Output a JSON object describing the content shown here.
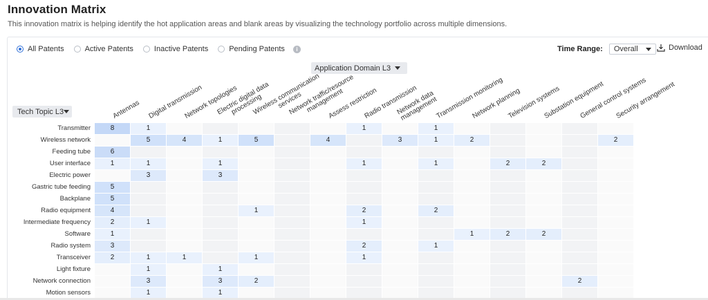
{
  "header": {
    "title": "Innovation Matrix",
    "subtitle": "This innovation matrix is helping identify the hot application areas and blank areas by visualizing the technology portfolio across multiple dimensions."
  },
  "filters": {
    "options": [
      "All Patents",
      "Active Patents",
      "Inactive Patents",
      "Pending Patents"
    ],
    "selected": "All Patents",
    "info_icon": "info-icon"
  },
  "time_range": {
    "label": "Time Range:",
    "value": "Overall"
  },
  "download": {
    "label": "Download",
    "icon": "download-icon"
  },
  "column_selector": {
    "label": "Application Domain L3"
  },
  "row_selector": {
    "label": "Tech Topic L3"
  },
  "columns": [
    "Antennas",
    "Digital transmission",
    "Network topologies",
    "Electric digital data processing",
    "Wireless communication services",
    "Network traffic/resource management",
    "Assess restriction",
    "Radio transmission",
    "Network data management",
    "Transmission monitoring",
    "Network planning",
    "Television systems",
    "Substation equipment",
    "General control systems",
    "Security arrangement"
  ],
  "rows": [
    {
      "label": "Transmitter",
      "values": [
        "8",
        "1",
        "",
        "",
        "",
        "",
        "",
        "1",
        "",
        "1",
        "",
        "",
        "",
        "",
        ""
      ]
    },
    {
      "label": "Wireless network",
      "values": [
        "",
        "5",
        "4",
        "1",
        "5",
        "",
        "4",
        "",
        "3",
        "1",
        "2",
        "",
        "",
        "",
        "2"
      ]
    },
    {
      "label": "Feeding tube",
      "values": [
        "6",
        "",
        "",
        "",
        "",
        "",
        "",
        "",
        "",
        "",
        "",
        "",
        "",
        "",
        ""
      ]
    },
    {
      "label": "User interface",
      "values": [
        "1",
        "1",
        "",
        "1",
        "",
        "",
        "",
        "1",
        "",
        "1",
        "",
        "2",
        "2",
        "",
        ""
      ]
    },
    {
      "label": "Electric power",
      "values": [
        "",
        "3",
        "",
        "3",
        "",
        "",
        "",
        "",
        "",
        "",
        "",
        "",
        "",
        "",
        ""
      ]
    },
    {
      "label": "Gastric tube feeding",
      "values": [
        "5",
        "",
        "",
        "",
        "",
        "",
        "",
        "",
        "",
        "",
        "",
        "",
        "",
        "",
        ""
      ]
    },
    {
      "label": "Backplane",
      "values": [
        "5",
        "",
        "",
        "",
        "",
        "",
        "",
        "",
        "",
        "",
        "",
        "",
        "",
        "",
        ""
      ]
    },
    {
      "label": "Radio equipment",
      "values": [
        "4",
        "",
        "",
        "",
        "1",
        "",
        "",
        "2",
        "",
        "2",
        "",
        "",
        "",
        "",
        ""
      ]
    },
    {
      "label": "Intermediate frequency",
      "values": [
        "2",
        "1",
        "",
        "",
        "",
        "",
        "",
        "1",
        "",
        "",
        "",
        "",
        "",
        "",
        ""
      ]
    },
    {
      "label": "Software",
      "values": [
        "1",
        "",
        "",
        "",
        "",
        "",
        "",
        "",
        "",
        "",
        "1",
        "2",
        "2",
        "",
        ""
      ]
    },
    {
      "label": "Radio system",
      "values": [
        "3",
        "",
        "",
        "",
        "",
        "",
        "",
        "2",
        "",
        "1",
        "",
        "",
        "",
        "",
        ""
      ]
    },
    {
      "label": "Transceiver",
      "values": [
        "2",
        "1",
        "1",
        "",
        "1",
        "",
        "",
        "1",
        "",
        "",
        "",
        "",
        "",
        "",
        ""
      ]
    },
    {
      "label": "Light fixture",
      "values": [
        "",
        "1",
        "",
        "1",
        "",
        "",
        "",
        "",
        "",
        "",
        "",
        "",
        "",
        "",
        ""
      ]
    },
    {
      "label": "Network connection",
      "values": [
        "",
        "3",
        "",
        "3",
        "2",
        "",
        "",
        "",
        "",
        "",
        "",
        "",
        "",
        "2",
        ""
      ]
    },
    {
      "label": "Motion sensors",
      "values": [
        "",
        "1",
        "",
        "1",
        "",
        "",
        "",
        "",
        "",
        "",
        "",
        "",
        "",
        "",
        ""
      ]
    }
  ]
}
